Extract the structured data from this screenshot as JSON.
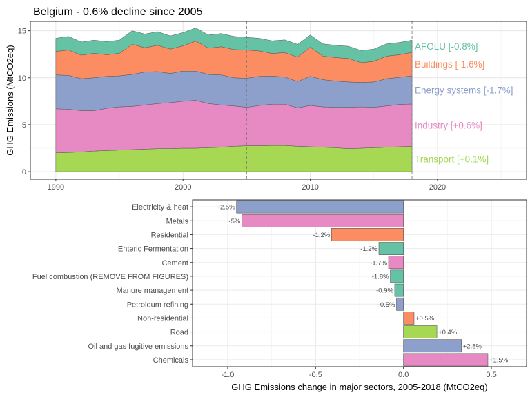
{
  "title": "Belgium - 0.6% decline since 2005",
  "colors": {
    "AFOLU": "#66c2a5",
    "Buildings": "#fc8d62",
    "Energy systems": "#8da0cb",
    "Industry": "#e78ac3",
    "Transport": "#a6d854"
  },
  "chart_data": [
    {
      "type": "area",
      "stacked": true,
      "ylabel": "GHG Emissions (MtCO2eq)",
      "xlabel": "",
      "xlim": [
        1988,
        2027
      ],
      "ylim": [
        -0.8,
        16
      ],
      "x_ticks": [
        1990,
        2000,
        2010,
        2020
      ],
      "y_ticks": [
        0,
        5,
        10,
        15
      ],
      "grid": true,
      "reference_lines": [
        2005,
        2018
      ],
      "x": [
        1990,
        1991,
        1992,
        1993,
        1994,
        1995,
        1996,
        1997,
        1998,
        1999,
        2000,
        2001,
        2002,
        2003,
        2004,
        2005,
        2006,
        2007,
        2008,
        2009,
        2010,
        2011,
        2012,
        2013,
        2014,
        2015,
        2016,
        2017,
        2018
      ],
      "series": [
        {
          "name": "Transport",
          "label": "Transport [+0.1%]",
          "color_key": "Transport",
          "values": [
            2.0,
            2.05,
            2.1,
            2.2,
            2.25,
            2.3,
            2.35,
            2.4,
            2.45,
            2.45,
            2.5,
            2.5,
            2.55,
            2.6,
            2.7,
            2.75,
            2.75,
            2.78,
            2.78,
            2.7,
            2.65,
            2.6,
            2.55,
            2.45,
            2.5,
            2.55,
            2.6,
            2.65,
            2.7
          ]
        },
        {
          "name": "Industry",
          "label": "Industry [+0.6%]",
          "color_key": "Industry",
          "values": [
            4.7,
            4.6,
            4.4,
            4.3,
            4.5,
            4.6,
            4.6,
            4.7,
            4.8,
            4.9,
            5.0,
            5.1,
            4.7,
            4.5,
            4.3,
            4.1,
            4.3,
            4.4,
            4.4,
            4.1,
            4.4,
            4.3,
            4.3,
            4.4,
            4.4,
            4.3,
            4.4,
            4.5,
            4.5
          ]
        },
        {
          "name": "Energy systems",
          "label": "Energy systems [-1.7%]",
          "color_key": "Energy systems",
          "values": [
            3.6,
            3.6,
            3.4,
            3.5,
            3.4,
            3.3,
            3.4,
            3.5,
            3.4,
            3.1,
            3.2,
            3.1,
            3.1,
            3.2,
            3.0,
            3.1,
            3.1,
            3.0,
            2.9,
            2.8,
            3.1,
            2.9,
            2.8,
            2.7,
            2.6,
            2.7,
            2.9,
            2.9,
            3.0
          ]
        },
        {
          "name": "Buildings",
          "label": "Buildings [-1.6%]",
          "color_key": "Buildings",
          "values": [
            2.5,
            2.7,
            2.5,
            2.6,
            2.3,
            2.4,
            3.2,
            2.6,
            2.8,
            2.6,
            2.7,
            3.2,
            2.8,
            3.0,
            3.0,
            3.0,
            2.7,
            2.4,
            2.6,
            2.6,
            3.1,
            2.5,
            2.5,
            2.5,
            2.1,
            2.2,
            2.4,
            2.4,
            2.5
          ]
        },
        {
          "name": "AFOLU",
          "label": "AFOLU [-0.8%]",
          "color_key": "AFOLU",
          "values": [
            1.4,
            1.45,
            1.4,
            1.4,
            1.4,
            1.4,
            1.45,
            1.45,
            1.45,
            1.4,
            1.4,
            1.4,
            1.4,
            1.4,
            1.4,
            1.35,
            1.35,
            1.35,
            1.35,
            1.35,
            1.3,
            1.3,
            1.3,
            1.3,
            1.3,
            1.3,
            1.3,
            1.3,
            1.3
          ]
        }
      ]
    },
    {
      "type": "bar",
      "orientation": "horizontal",
      "xlabel": "GHG Emissions change in major sectors, 2005-2018 (MtCO2eq)",
      "ylabel": "",
      "xlim": [
        -1.2,
        0.7
      ],
      "x_ticks": [
        -1.0,
        -0.5,
        0.0,
        0.5
      ],
      "x_tick_labels": [
        "-1.0",
        "-0.5",
        "0.0",
        "0.5"
      ],
      "grid": true,
      "bars": [
        {
          "category": "Electricity & heat",
          "value": -0.95,
          "label": "-2.5%",
          "color_key": "Energy systems"
        },
        {
          "category": "Metals",
          "value": -0.92,
          "label": "-5%",
          "color_key": "Industry"
        },
        {
          "category": "Residential",
          "value": -0.41,
          "label": "-1.2%",
          "color_key": "Buildings"
        },
        {
          "category": "Enteric Fermentation",
          "value": -0.14,
          "label": "-1.2%",
          "color_key": "AFOLU"
        },
        {
          "category": "Cement",
          "value": -0.085,
          "label": "-1.7%",
          "color_key": "Industry"
        },
        {
          "category": "Fuel combustion (REMOVE FROM FIGURES)",
          "value": -0.075,
          "label": "-1.8%",
          "color_key": "AFOLU"
        },
        {
          "category": "Manure management",
          "value": -0.05,
          "label": "-0.9%",
          "color_key": "AFOLU"
        },
        {
          "category": "Petroleum refining",
          "value": -0.04,
          "label": "-0.5%",
          "color_key": "Energy systems"
        },
        {
          "category": "Non-residential",
          "value": 0.06,
          "label": "+0.5%",
          "color_key": "Buildings"
        },
        {
          "category": "Road",
          "value": 0.19,
          "label": "+0.4%",
          "color_key": "Transport"
        },
        {
          "category": "Oil and gas fugitive emissions",
          "value": 0.33,
          "label": "+2.8%",
          "color_key": "Energy systems"
        },
        {
          "category": "Chemicals",
          "value": 0.48,
          "label": "+1.5%",
          "color_key": "Industry"
        }
      ]
    }
  ]
}
